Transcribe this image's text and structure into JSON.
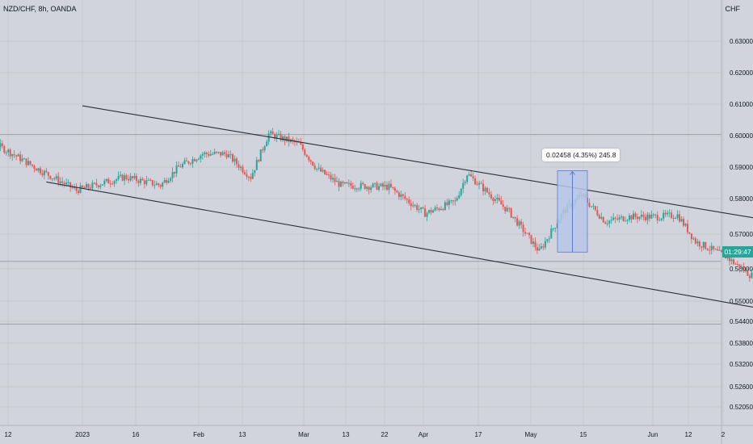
{
  "header": {
    "symbol_title": "NZD/CHF, 8h, OANDA",
    "currency": "CHF"
  },
  "price_axis": {
    "ticks": [
      "0.63000",
      "0.62000",
      "0.61000",
      "0.60000",
      "0.59000",
      "0.58000",
      "0.57000",
      "0.56000",
      "0.55000",
      "0.54400",
      "0.53800",
      "0.53200",
      "0.52600",
      "0.52050"
    ]
  },
  "time_axis": {
    "ticks": [
      "12",
      "2023",
      "16",
      "Feb",
      "13",
      "Mar",
      "13",
      "22",
      "Apr",
      "17",
      "May",
      "15",
      "Jun",
      "12",
      "2"
    ]
  },
  "current_price_badge": {
    "label": "01:29:47"
  },
  "measure_tool": {
    "label": "0.02458 (4.35%) 245.8"
  },
  "colors": {
    "up": "#26a69a",
    "down": "#ef5350",
    "measure_fill": "#b7c6e8",
    "measure_stroke": "#5b7bd0",
    "trendline": "#2a2e39"
  },
  "chart_data": {
    "type": "candlestick",
    "symbol": "NZD/CHF",
    "timeframe": "8h",
    "source": "OANDA",
    "ylim": [
      0.5187,
      0.6355
    ],
    "horizontal_levels": [
      0.6004,
      0.562,
      0.5434
    ],
    "price_path_keypoints": [
      {
        "t": "Dec 5",
        "price": 0.5985
      },
      {
        "t": "Dec 7",
        "price": 0.6005
      },
      {
        "t": "Dec 13",
        "price": 0.597
      },
      {
        "t": "Dec 20",
        "price": 0.5895
      },
      {
        "t": "Dec 26",
        "price": 0.5835
      },
      {
        "t": "Jan 3",
        "price": 0.5875
      },
      {
        "t": "Jan 9",
        "price": 0.585
      },
      {
        "t": "Jan 12",
        "price": 0.5905
      },
      {
        "t": "Jan 16",
        "price": 0.5945
      },
      {
        "t": "Jan 20",
        "price": 0.5945
      },
      {
        "t": "Jan 24",
        "price": 0.5875
      },
      {
        "t": "Jan 27",
        "price": 0.6005
      },
      {
        "t": "Feb 1",
        "price": 0.5975
      },
      {
        "t": "Feb 4",
        "price": 0.59
      },
      {
        "t": "Feb 8",
        "price": 0.585
      },
      {
        "t": "Feb 16",
        "price": 0.5845
      },
      {
        "t": "Feb 22",
        "price": 0.5765
      },
      {
        "t": "Feb 27",
        "price": 0.58
      },
      {
        "t": "Mar 1",
        "price": 0.5885
      },
      {
        "t": "Mar 4",
        "price": 0.5835
      },
      {
        "t": "Mar 8",
        "price": 0.577
      },
      {
        "t": "Mar 13",
        "price": 0.565
      },
      {
        "t": "Mar 17",
        "price": 0.577
      },
      {
        "t": "Mar 20",
        "price": 0.582
      },
      {
        "t": "Mar 24",
        "price": 0.574
      },
      {
        "t": "Mar 28",
        "price": 0.5755
      },
      {
        "t": "Apr 2",
        "price": 0.5755
      },
      {
        "t": "Apr 5",
        "price": 0.576
      },
      {
        "t": "Apr 8",
        "price": 0.568
      },
      {
        "t": "Apr 13",
        "price": 0.5635
      },
      {
        "t": "Apr 17",
        "price": 0.558
      },
      {
        "t": "Apr 22",
        "price": 0.5555
      },
      {
        "t": "Apr 26",
        "price": 0.548
      },
      {
        "t": "Apr 29",
        "price": 0.545
      },
      {
        "t": "May 2",
        "price": 0.552
      },
      {
        "t": "May 5",
        "price": 0.5555
      },
      {
        "t": "May 7",
        "price": 0.5505
      },
      {
        "t": "May 9",
        "price": 0.56
      },
      {
        "t": "May 11",
        "price": 0.5648
      }
    ],
    "channel": {
      "upper": [
        {
          "t": "Dec 27",
          "price": 0.609
        },
        {
          "t": "Jun 10",
          "price": 0.559
        }
      ],
      "lower": [
        {
          "t": "Dec 21",
          "price": 0.586
        },
        {
          "t": "May 23",
          "price": 0.5375
        }
      ]
    },
    "measure_range": {
      "from": 0.5648,
      "to": 0.5894,
      "change": 0.02458,
      "percent": 4.35,
      "pips": 245.8
    },
    "current_price": 0.5648
  }
}
